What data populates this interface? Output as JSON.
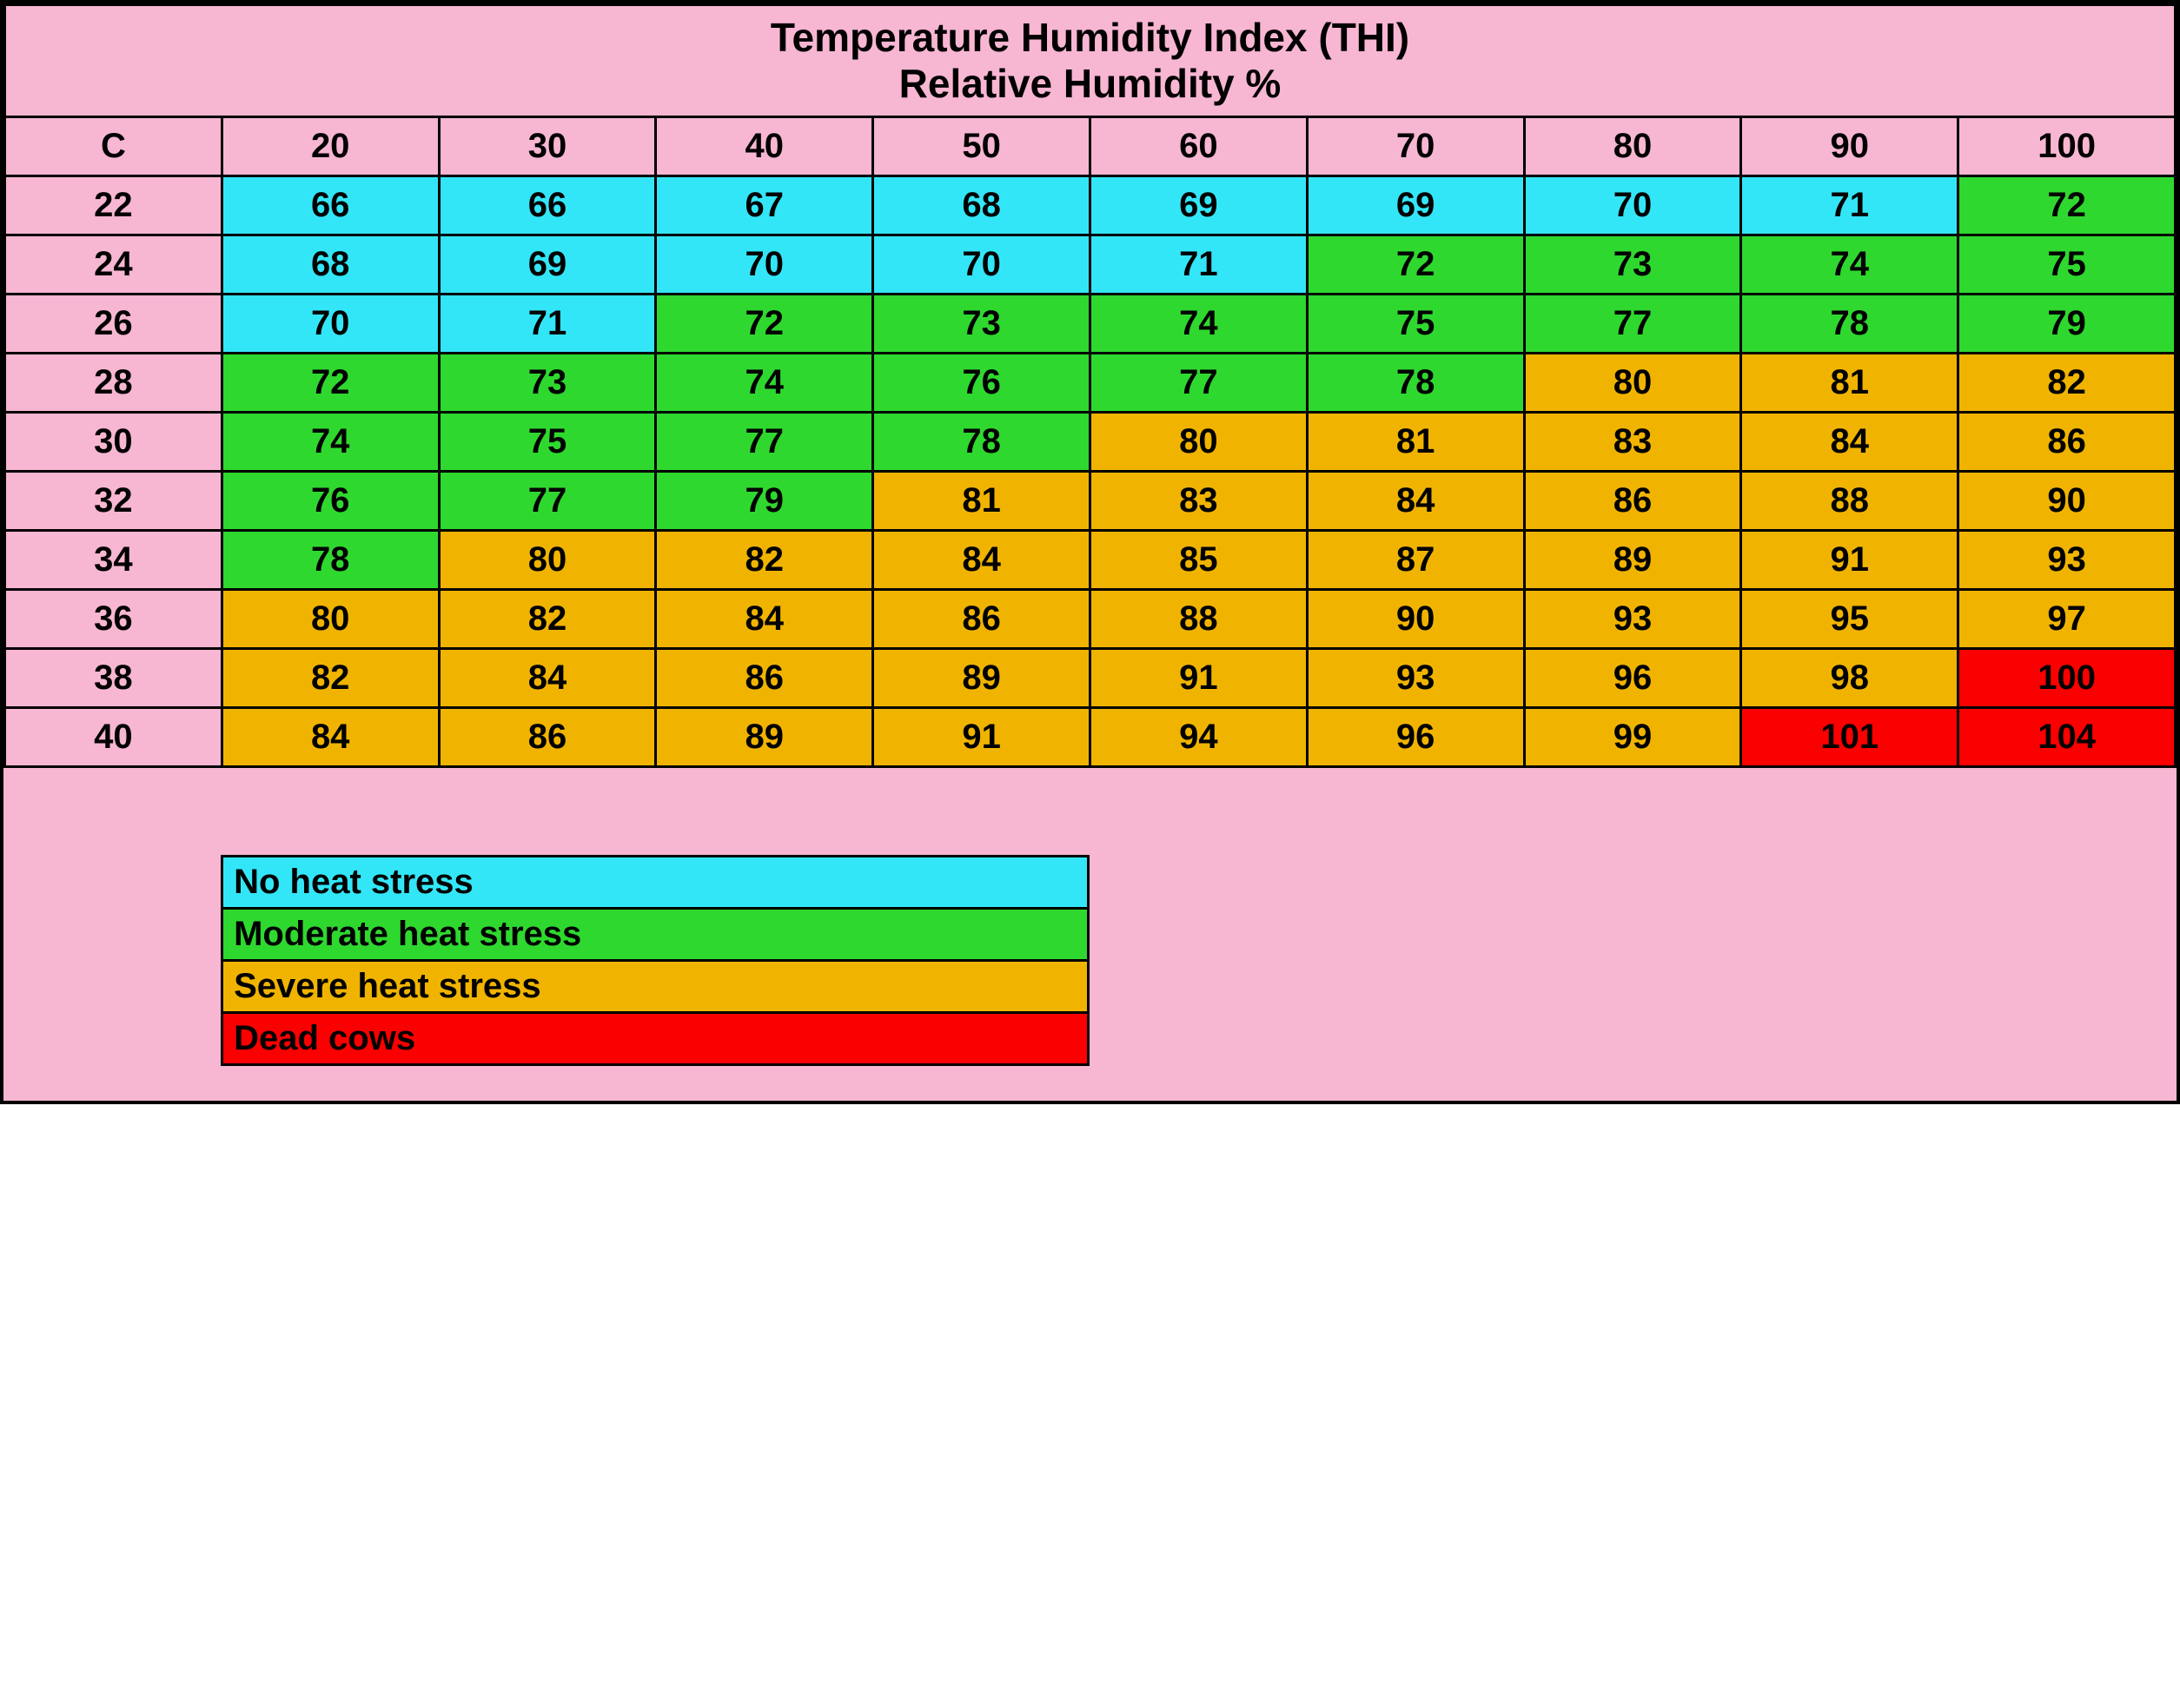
{
  "title_line1": "Temperature Humidity Index (THI)",
  "title_line2": "Relative Humidity %",
  "row_label": "C",
  "humidity_headers": [
    "20",
    "30",
    "40",
    "50",
    "60",
    "70",
    "80",
    "90",
    "100"
  ],
  "temp_rows": [
    "22",
    "24",
    "26",
    "28",
    "30",
    "32",
    "34",
    "36",
    "38",
    "40"
  ],
  "cells": [
    [
      {
        "v": "66",
        "c": "none"
      },
      {
        "v": "66",
        "c": "none"
      },
      {
        "v": "67",
        "c": "none"
      },
      {
        "v": "68",
        "c": "none"
      },
      {
        "v": "69",
        "c": "none"
      },
      {
        "v": "69",
        "c": "none"
      },
      {
        "v": "70",
        "c": "none"
      },
      {
        "v": "71",
        "c": "none"
      },
      {
        "v": "72",
        "c": "moderate"
      }
    ],
    [
      {
        "v": "68",
        "c": "none"
      },
      {
        "v": "69",
        "c": "none"
      },
      {
        "v": "70",
        "c": "none"
      },
      {
        "v": "70",
        "c": "none"
      },
      {
        "v": "71",
        "c": "none"
      },
      {
        "v": "72",
        "c": "moderate"
      },
      {
        "v": "73",
        "c": "moderate"
      },
      {
        "v": "74",
        "c": "moderate"
      },
      {
        "v": "75",
        "c": "moderate"
      }
    ],
    [
      {
        "v": "70",
        "c": "none"
      },
      {
        "v": "71",
        "c": "none"
      },
      {
        "v": "72",
        "c": "moderate"
      },
      {
        "v": "73",
        "c": "moderate"
      },
      {
        "v": "74",
        "c": "moderate"
      },
      {
        "v": "75",
        "c": "moderate"
      },
      {
        "v": "77",
        "c": "moderate"
      },
      {
        "v": "78",
        "c": "moderate"
      },
      {
        "v": "79",
        "c": "moderate"
      }
    ],
    [
      {
        "v": "72",
        "c": "moderate"
      },
      {
        "v": "73",
        "c": "moderate"
      },
      {
        "v": "74",
        "c": "moderate"
      },
      {
        "v": "76",
        "c": "moderate"
      },
      {
        "v": "77",
        "c": "moderate"
      },
      {
        "v": "78",
        "c": "moderate"
      },
      {
        "v": "80",
        "c": "severe"
      },
      {
        "v": "81",
        "c": "severe"
      },
      {
        "v": "82",
        "c": "severe"
      }
    ],
    [
      {
        "v": "74",
        "c": "moderate"
      },
      {
        "v": "75",
        "c": "moderate"
      },
      {
        "v": "77",
        "c": "moderate"
      },
      {
        "v": "78",
        "c": "moderate"
      },
      {
        "v": "80",
        "c": "severe"
      },
      {
        "v": "81",
        "c": "severe"
      },
      {
        "v": "83",
        "c": "severe"
      },
      {
        "v": "84",
        "c": "severe"
      },
      {
        "v": "86",
        "c": "severe"
      }
    ],
    [
      {
        "v": "76",
        "c": "moderate"
      },
      {
        "v": "77",
        "c": "moderate"
      },
      {
        "v": "79",
        "c": "moderate"
      },
      {
        "v": "81",
        "c": "severe"
      },
      {
        "v": "83",
        "c": "severe"
      },
      {
        "v": "84",
        "c": "severe"
      },
      {
        "v": "86",
        "c": "severe"
      },
      {
        "v": "88",
        "c": "severe"
      },
      {
        "v": "90",
        "c": "severe"
      }
    ],
    [
      {
        "v": "78",
        "c": "moderate"
      },
      {
        "v": "80",
        "c": "severe"
      },
      {
        "v": "82",
        "c": "severe"
      },
      {
        "v": "84",
        "c": "severe"
      },
      {
        "v": "85",
        "c": "severe"
      },
      {
        "v": "87",
        "c": "severe"
      },
      {
        "v": "89",
        "c": "severe"
      },
      {
        "v": "91",
        "c": "severe"
      },
      {
        "v": "93",
        "c": "severe"
      }
    ],
    [
      {
        "v": "80",
        "c": "severe"
      },
      {
        "v": "82",
        "c": "severe"
      },
      {
        "v": "84",
        "c": "severe"
      },
      {
        "v": "86",
        "c": "severe"
      },
      {
        "v": "88",
        "c": "severe"
      },
      {
        "v": "90",
        "c": "severe"
      },
      {
        "v": "93",
        "c": "severe"
      },
      {
        "v": "95",
        "c": "severe"
      },
      {
        "v": "97",
        "c": "severe"
      }
    ],
    [
      {
        "v": "82",
        "c": "severe"
      },
      {
        "v": "84",
        "c": "severe"
      },
      {
        "v": "86",
        "c": "severe"
      },
      {
        "v": "89",
        "c": "severe"
      },
      {
        "v": "91",
        "c": "severe"
      },
      {
        "v": "93",
        "c": "severe"
      },
      {
        "v": "96",
        "c": "severe"
      },
      {
        "v": "98",
        "c": "severe"
      },
      {
        "v": "100",
        "c": "dead"
      }
    ],
    [
      {
        "v": "84",
        "c": "severe"
      },
      {
        "v": "86",
        "c": "severe"
      },
      {
        "v": "89",
        "c": "severe"
      },
      {
        "v": "91",
        "c": "severe"
      },
      {
        "v": "94",
        "c": "severe"
      },
      {
        "v": "96",
        "c": "severe"
      },
      {
        "v": "99",
        "c": "severe"
      },
      {
        "v": "101",
        "c": "dead"
      },
      {
        "v": "104",
        "c": "dead"
      }
    ]
  ],
  "legend": [
    {
      "label": "No heat stress",
      "c": "none"
    },
    {
      "label": "Moderate heat stress",
      "c": "moderate"
    },
    {
      "label": "Severe heat stress",
      "c": "severe"
    },
    {
      "label": "Dead cows",
      "c": "dead"
    }
  ],
  "colors": {
    "pink": "#f7b6d2",
    "none": "#33e6f7",
    "moderate": "#2fd82f",
    "severe": "#f0b400",
    "dead": "#fa0000",
    "border": "#000000",
    "text": "#000000"
  },
  "fontsize": {
    "title": 46,
    "header": 40,
    "cell": 40,
    "legend": 40
  }
}
